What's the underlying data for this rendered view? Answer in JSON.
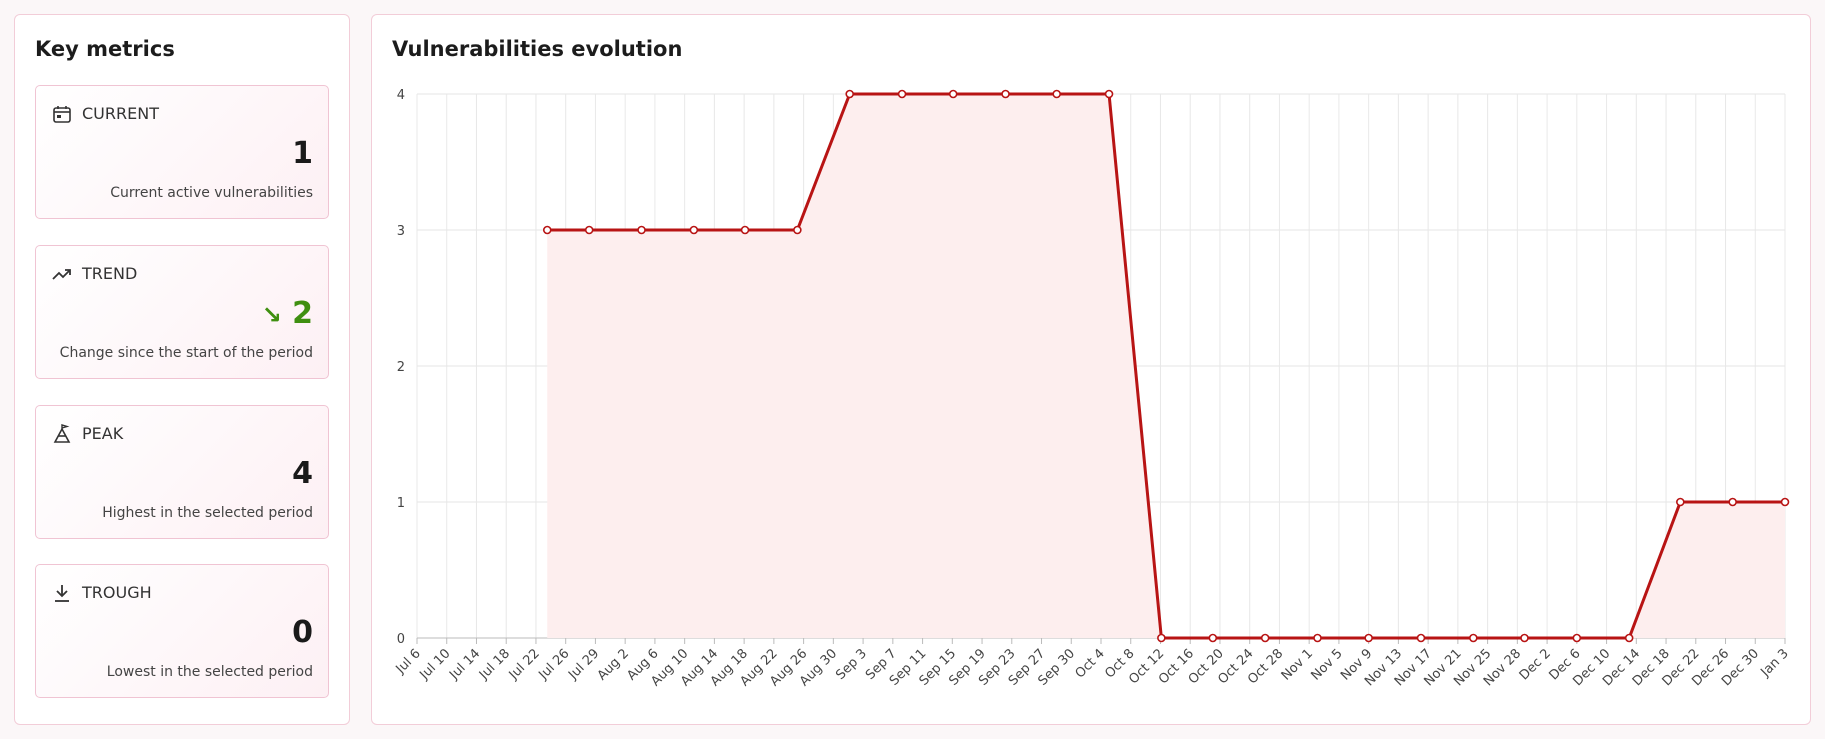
{
  "key_metrics": {
    "title": "Key metrics",
    "cards": [
      {
        "label": "CURRENT",
        "value": 1,
        "description": "Current active vulnerabilities"
      },
      {
        "label": "TREND",
        "direction": "↘",
        "value": 2,
        "description": "Change since the start of the period"
      },
      {
        "label": "PEAK",
        "value": 4,
        "description": "Highest in the selected period"
      },
      {
        "label": "TROUGH",
        "value": 0,
        "description": "Lowest in the selected period"
      }
    ]
  },
  "chart_data": {
    "type": "line",
    "title": "Vulnerabilities evolution",
    "xlim": [
      0,
      46
    ],
    "xticks": [
      {
        "value": 0,
        "label": "Jul 6"
      },
      {
        "value": 1,
        "label": "Jul 10"
      },
      {
        "value": 2,
        "label": "Jul 14"
      },
      {
        "value": 3,
        "label": "Jul 18"
      },
      {
        "value": 4,
        "label": "Jul 22"
      },
      {
        "value": 5,
        "label": "Jul 26"
      },
      {
        "value": 6,
        "label": "Jul 29"
      },
      {
        "value": 7,
        "label": "Aug 2"
      },
      {
        "value": 8,
        "label": "Aug 6"
      },
      {
        "value": 9,
        "label": "Aug 10"
      },
      {
        "value": 10,
        "label": "Aug 14"
      },
      {
        "value": 11,
        "label": "Aug 18"
      },
      {
        "value": 12,
        "label": "Aug 22"
      },
      {
        "value": 13,
        "label": "Aug 26"
      },
      {
        "value": 14,
        "label": "Aug 30"
      },
      {
        "value": 15,
        "label": "Sep 3"
      },
      {
        "value": 16,
        "label": "Sep 7"
      },
      {
        "value": 17,
        "label": "Sep 11"
      },
      {
        "value": 18,
        "label": "Sep 15"
      },
      {
        "value": 19,
        "label": "Sep 19"
      },
      {
        "value": 20,
        "label": "Sep 23"
      },
      {
        "value": 21,
        "label": "Sep 27"
      },
      {
        "value": 22,
        "label": "Sep 30"
      },
      {
        "value": 23,
        "label": "Oct 4"
      },
      {
        "value": 24,
        "label": "Oct 8"
      },
      {
        "value": 25,
        "label": "Oct 12"
      },
      {
        "value": 26,
        "label": "Oct 16"
      },
      {
        "value": 27,
        "label": "Oct 20"
      },
      {
        "value": 28,
        "label": "Oct 24"
      },
      {
        "value": 29,
        "label": "Oct 28"
      },
      {
        "value": 30,
        "label": "Nov 1"
      },
      {
        "value": 31,
        "label": "Nov 5"
      },
      {
        "value": 32,
        "label": "Nov 9"
      },
      {
        "value": 33,
        "label": "Nov 13"
      },
      {
        "value": 34,
        "label": "Nov 17"
      },
      {
        "value": 35,
        "label": "Nov 21"
      },
      {
        "value": 36,
        "label": "Nov 25"
      },
      {
        "value": 37,
        "label": "Nov 28"
      },
      {
        "value": 38,
        "label": "Dec 2"
      },
      {
        "value": 39,
        "label": "Dec 6"
      },
      {
        "value": 40,
        "label": "Dec 10"
      },
      {
        "value": 41,
        "label": "Dec 14"
      },
      {
        "value": 42,
        "label": "Dec 18"
      },
      {
        "value": 43,
        "label": "Dec 22"
      },
      {
        "value": 44,
        "label": "Dec 26"
      },
      {
        "value": 45,
        "label": "Dec 30"
      },
      {
        "value": 46,
        "label": "Jan 3"
      }
    ],
    "ylim": [
      0,
      4
    ],
    "yticks": [
      0,
      1,
      2,
      3,
      4
    ],
    "grid": true,
    "series": [
      {
        "color": "#b81414",
        "fill": "#fdeeee",
        "x": [
          4.38,
          5.79,
          7.55,
          9.31,
          11.03,
          12.79,
          14.55,
          16.31,
          18.03,
          19.79,
          21.51,
          23.27,
          25.03,
          26.76,
          28.52,
          30.28,
          32.0,
          33.76,
          35.52,
          37.24,
          39.0,
          40.76,
          42.48,
          44.24,
          46.0
        ],
        "values": [
          3,
          3,
          3,
          3,
          3,
          3,
          4,
          4,
          4,
          4,
          4,
          4,
          0,
          0,
          0,
          0,
          0,
          0,
          0,
          0,
          0,
          0,
          1,
          1,
          1
        ]
      }
    ]
  }
}
